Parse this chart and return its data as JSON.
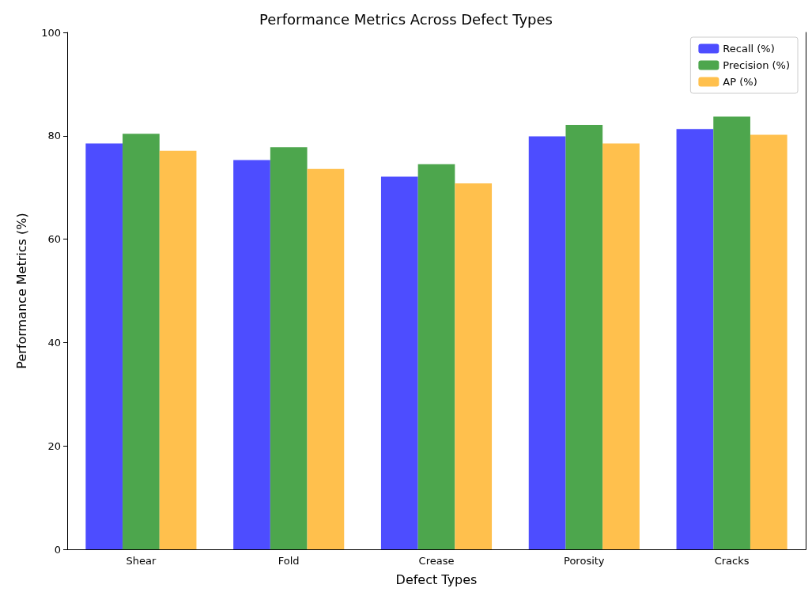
{
  "chart_data": {
    "type": "bar",
    "title": "Performance Metrics Across Defect Types",
    "xlabel": "Defect Types",
    "ylabel": "Performance Metrics (%)",
    "categories": [
      "Shear",
      "Fold",
      "Crease",
      "Porosity",
      "Cracks"
    ],
    "series": [
      {
        "name": "Recall (%)",
        "color": "#4d4dff",
        "values": [
          78.5,
          75.3,
          72.1,
          79.9,
          81.3
        ]
      },
      {
        "name": "Precision (%)",
        "color": "#4da64d",
        "values": [
          80.4,
          77.8,
          74.5,
          82.1,
          83.7
        ]
      },
      {
        "name": "AP (%)",
        "color": "#ffc04d",
        "values": [
          77.1,
          73.6,
          70.8,
          78.5,
          80.2
        ]
      }
    ],
    "ylim": [
      0,
      100
    ],
    "yticks": [
      0,
      20,
      40,
      60,
      80,
      100
    ],
    "grid": false,
    "legend": "top right"
  }
}
